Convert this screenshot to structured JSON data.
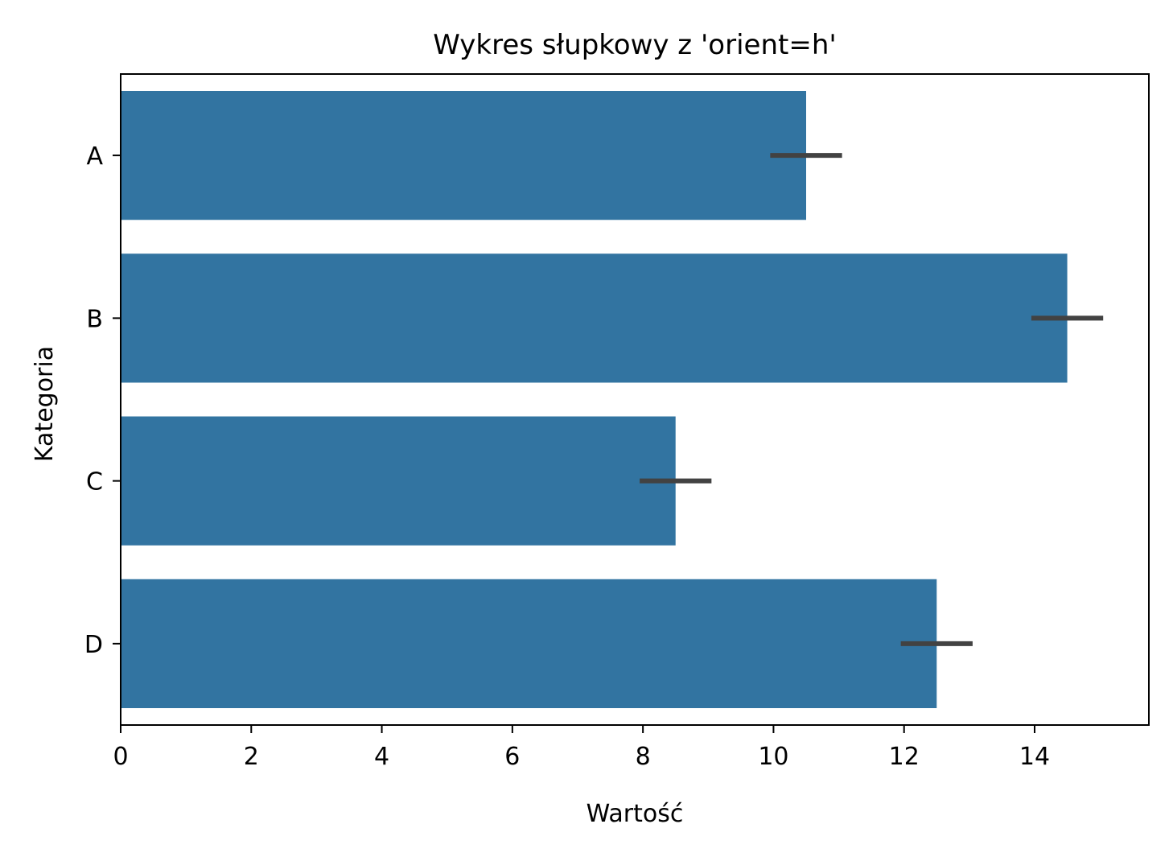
{
  "chart_data": {
    "type": "bar",
    "orientation": "horizontal",
    "title": "Wykres słupkowy z 'orient=h'",
    "xlabel": "Wartość",
    "ylabel": "Kategoria",
    "categories": [
      "A",
      "B",
      "C",
      "D"
    ],
    "values": [
      10.5,
      14.5,
      8.5,
      12.5
    ],
    "error_bars": [
      {
        "low": 9.95,
        "high": 11.05
      },
      {
        "low": 13.95,
        "high": 15.05
      },
      {
        "low": 7.95,
        "high": 9.05
      },
      {
        "low": 11.95,
        "high": 13.05
      }
    ],
    "xlim": [
      0,
      15.75
    ],
    "xticks": [
      0,
      2,
      4,
      6,
      8,
      10,
      12,
      14
    ],
    "xtick_labels": [
      "0",
      "2",
      "4",
      "6",
      "8",
      "10",
      "12",
      "14"
    ],
    "grid": false,
    "legend": "none",
    "colors": {
      "bar": "#3274a1",
      "error_bar": "#424242",
      "axes": "#000000"
    }
  }
}
